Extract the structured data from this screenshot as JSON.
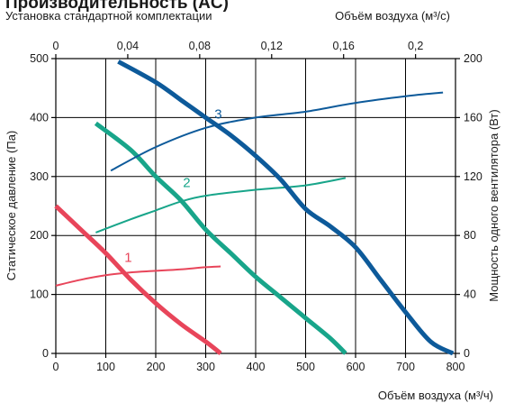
{
  "chart_data": {
    "type": "line",
    "title": "Производительность (AC)",
    "subtitle": "Установка стандартной комплектации",
    "xlabel": "Объём воздуха (м³/ч)",
    "x2label": "Объём воздуха (м³/с)",
    "ylabel": "Статическое давление (Па)",
    "y2label": "Мощность одного вентилятора (Вт)",
    "xlim": [
      0,
      800
    ],
    "ylim": [
      0,
      500
    ],
    "x2lim": [
      0,
      0.2222
    ],
    "y2lim": [
      0,
      200
    ],
    "x_ticks": [
      "0",
      "100",
      "200",
      "300",
      "400",
      "500",
      "600",
      "700",
      "800"
    ],
    "y_ticks": [
      "0",
      "100",
      "200",
      "300",
      "400",
      "500"
    ],
    "x2_ticks": [
      "0",
      "0,04",
      "0,08",
      "0,12",
      "0,16",
      "0,2"
    ],
    "y2_ticks": [
      "0",
      "40",
      "80",
      "120",
      "160",
      "200"
    ],
    "grid": true,
    "series": [
      {
        "name": "1",
        "role": "pressure",
        "axis": "left",
        "color": "#e8455a",
        "x": [
          0,
          50,
          100,
          150,
          200,
          250,
          300,
          330
        ],
        "y": [
          250,
          210,
          170,
          125,
          85,
          50,
          20,
          0
        ]
      },
      {
        "name": "1",
        "role": "power",
        "axis": "right",
        "color": "#e8455a",
        "x": [
          0,
          50,
          100,
          150,
          200,
          250,
          300,
          330
        ],
        "y": [
          46,
          50,
          53,
          55,
          56,
          57,
          58.5,
          59
        ]
      },
      {
        "name": "2",
        "role": "pressure",
        "axis": "left",
        "color": "#18a58a",
        "x": [
          80,
          150,
          200,
          250,
          300,
          350,
          400,
          450,
          500,
          550,
          580
        ],
        "y": [
          390,
          345,
          300,
          260,
          210,
          170,
          130,
          95,
          60,
          25,
          0
        ]
      },
      {
        "name": "2",
        "role": "power",
        "axis": "right",
        "color": "#18a58a",
        "x": [
          80,
          150,
          200,
          250,
          300,
          400,
          500,
          580
        ],
        "y": [
          82,
          91,
          97,
          103,
          107,
          111,
          114,
          119
        ]
      },
      {
        "name": "3",
        "role": "pressure",
        "axis": "left",
        "color": "#0d5a9a",
        "x": [
          125,
          200,
          250,
          300,
          350,
          400,
          450,
          500,
          550,
          600,
          650,
          700,
          750,
          795
        ],
        "y": [
          495,
          460,
          430,
          400,
          370,
          335,
          295,
          245,
          215,
          180,
          125,
          70,
          20,
          0
        ]
      },
      {
        "name": "3",
        "role": "power",
        "axis": "right",
        "color": "#0d5a9a",
        "x": [
          110,
          200,
          300,
          400,
          500,
          600,
          700,
          775
        ],
        "y": [
          124,
          140,
          153,
          160,
          164,
          170,
          174.5,
          177
        ]
      }
    ],
    "annotations": [
      {
        "text": "1",
        "x": 145,
        "y": 155,
        "color": "#e8455a"
      },
      {
        "text": "2",
        "x": 262,
        "y": 282,
        "color": "#18a58a"
      },
      {
        "text": "3",
        "x": 325,
        "y": 398,
        "color": "#0d5a9a"
      }
    ]
  }
}
